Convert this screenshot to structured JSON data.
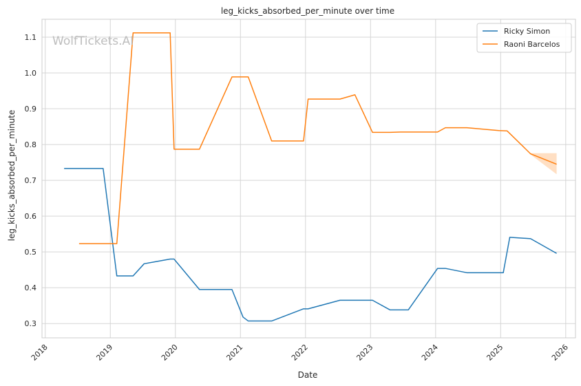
{
  "chart_data": {
    "type": "line",
    "title": "leg_kicks_absorbed_per_minute over time",
    "xlabel": "Date",
    "ylabel": "leg_kicks_absorbed_per_minute",
    "watermark": "WolfTickets.AI",
    "xlim": [
      2017.95,
      2026.15
    ],
    "ylim": [
      0.26,
      1.15
    ],
    "x_ticks": [
      2018,
      2019,
      2020,
      2021,
      2022,
      2023,
      2024,
      2025,
      2026
    ],
    "x_tick_labels": [
      "2018",
      "2019",
      "2020",
      "2021",
      "2022",
      "2023",
      "2024",
      "2025",
      "2026"
    ],
    "y_ticks": [
      0.3,
      0.4,
      0.5,
      0.6,
      0.7,
      0.8,
      0.9,
      1.0,
      1.1
    ],
    "y_tick_labels": [
      "0.3",
      "0.4",
      "0.5",
      "0.6",
      "0.7",
      "0.8",
      "0.9",
      "1.0",
      "1.1"
    ],
    "grid": true,
    "legend_position": "top-right",
    "series": [
      {
        "name": "Ricky Simon",
        "color": "#1f77b4",
        "x": [
          2018.29,
          2018.89,
          2019.1,
          2019.35,
          2019.52,
          2019.92,
          2019.98,
          2020.37,
          2020.87,
          2021.04,
          2021.12,
          2021.48,
          2021.97,
          2022.04,
          2022.53,
          2022.76,
          2023.03,
          2023.3,
          2023.58,
          2024.03,
          2024.15,
          2024.48,
          2024.72,
          2025.04,
          2025.14,
          2025.46,
          2025.86
        ],
        "y": [
          0.733,
          0.733,
          0.433,
          0.433,
          0.467,
          0.48,
          0.48,
          0.395,
          0.395,
          0.318,
          0.307,
          0.307,
          0.341,
          0.341,
          0.365,
          0.365,
          0.365,
          0.338,
          0.338,
          0.454,
          0.454,
          0.442,
          0.442,
          0.442,
          0.541,
          0.537,
          0.496
        ],
        "band_upper": [],
        "band_lower": []
      },
      {
        "name": "Raoni Barcelos",
        "color": "#ff7f0e",
        "x": [
          2018.52,
          2019.1,
          2019.35,
          2019.92,
          2019.98,
          2020.37,
          2020.87,
          2021.12,
          2021.48,
          2021.97,
          2022.04,
          2022.53,
          2022.76,
          2023.03,
          2023.3,
          2023.46,
          2024.03,
          2024.15,
          2024.48,
          2024.97,
          2025.1,
          2025.46,
          2025.86
        ],
        "y": [
          0.523,
          0.523,
          1.112,
          1.112,
          0.787,
          0.787,
          0.989,
          0.989,
          0.81,
          0.81,
          0.927,
          0.927,
          0.939,
          0.834,
          0.834,
          0.835,
          0.835,
          0.847,
          0.847,
          0.839,
          0.838,
          0.774,
          0.745
        ],
        "band_x": [
          2025.46,
          2025.86
        ],
        "band_upper": [
          0.776,
          0.776
        ],
        "band_lower": [
          0.772,
          0.717
        ]
      }
    ]
  }
}
